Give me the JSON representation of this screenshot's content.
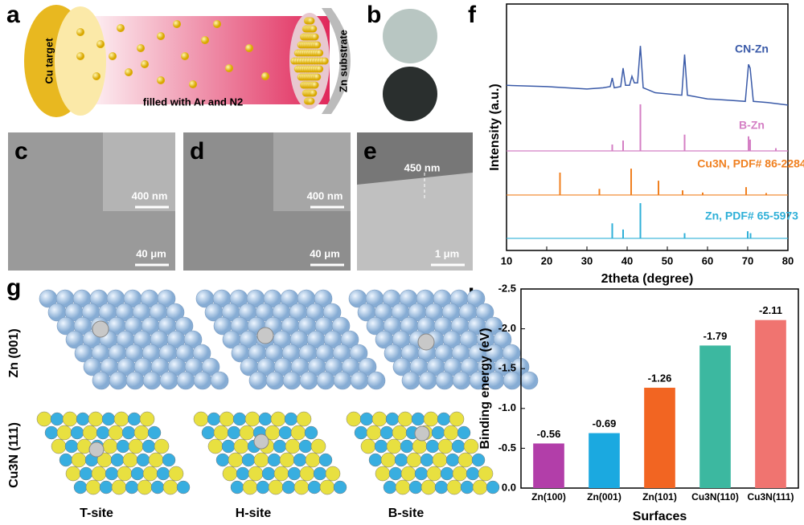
{
  "panels": {
    "a": {
      "letter": "a",
      "target": "Cu target",
      "gas": "filled with Ar and N2",
      "substrate": "Zn substrate"
    },
    "b": {
      "letter": "b"
    },
    "c": {
      "letter": "c",
      "inset_scale": "400 nm",
      "scale": "40 μm"
    },
    "d": {
      "letter": "d",
      "inset_scale": "400 nm",
      "scale": "40 μm"
    },
    "e": {
      "letter": "e",
      "thickness": "450 nm",
      "scale": "1 μm"
    },
    "f": {
      "letter": "f"
    },
    "g": {
      "letter": "g",
      "rows": [
        "Zn (001)",
        "Cu3N (111)"
      ],
      "sites": [
        "T-site",
        "H-site",
        "B-site"
      ]
    },
    "h": {
      "letter": "h"
    }
  },
  "chart_data": [
    {
      "type": "xrd",
      "x_label": "2theta (degree)",
      "y_label": "Intensity (a.u.)",
      "xlim": [
        10,
        80
      ],
      "xticks": [
        10,
        20,
        30,
        40,
        50,
        60,
        70,
        80
      ],
      "ylim": [
        0,
        100
      ],
      "series": [
        {
          "name": "CN-Zn",
          "color": "#3a5aa8",
          "x": [
            10,
            20,
            30,
            34,
            35.8,
            36.3,
            36.8,
            38.4,
            39,
            39.6,
            40.6,
            41.2,
            41.8,
            42.6,
            43.3,
            44,
            47,
            53.6,
            54.3,
            55,
            60,
            65,
            69.4,
            70.2,
            70.6,
            71.4,
            75,
            80
          ],
          "values": [
            67,
            66.5,
            65.5,
            66,
            66.5,
            70,
            66,
            66.5,
            74,
            67,
            67,
            70.7,
            68,
            68,
            83,
            66,
            64,
            63,
            79.5,
            63,
            61.5,
            61,
            60.5,
            75.5,
            74,
            60.5,
            60,
            59
          ]
        },
        {
          "name": "B-Zn",
          "color": "#d47fc4",
          "baseline": 40.4,
          "x": [
            36.3,
            39,
            43.3,
            54.3,
            70.2,
            70.6,
            77
          ],
          "values": [
            43,
            44.6,
            59.3,
            47,
            46.3,
            45,
            41.5
          ]
        },
        {
          "name": "Cu3N, PDF# 86-2284",
          "color": "#f08020",
          "baseline": 22.5,
          "x": [
            23.3,
            33.1,
            41,
            47.8,
            53.8,
            58.8,
            69.6,
            74.6
          ],
          "values": [
            31.6,
            25,
            33.2,
            28.3,
            24.4,
            23.5,
            25.7,
            23.3
          ]
        },
        {
          "name": "Zn, PDF# 65-5973",
          "color": "#2fb0d8",
          "baseline": 4.9,
          "x": [
            36.3,
            39,
            43.3,
            54.3,
            70,
            70.7
          ],
          "values": [
            11,
            8.5,
            19.2,
            7,
            7.8,
            7
          ]
        }
      ]
    },
    {
      "type": "bar",
      "x_label": "Surfaces",
      "y_label": "Binding energy (eV)",
      "categories": [
        "Zn(100)",
        "Zn(001)",
        "Zn(101)",
        "Cu3N(110)",
        "Cu3N(111)"
      ],
      "values": [
        -0.56,
        -0.69,
        -1.26,
        -1.79,
        -2.11
      ],
      "colors": [
        "#b23ea9",
        "#1ba9e0",
        "#f26522",
        "#3cb8a0",
        "#f07470"
      ],
      "ylim": [
        0,
        -2.5
      ],
      "yticks": [
        {
          "value": 0,
          "label": "0.0"
        },
        -0.5,
        {
          "value": -1,
          "label": "-1.0"
        },
        -1.5,
        {
          "value": -2,
          "label": "-2.0"
        },
        -2.5
      ]
    }
  ]
}
